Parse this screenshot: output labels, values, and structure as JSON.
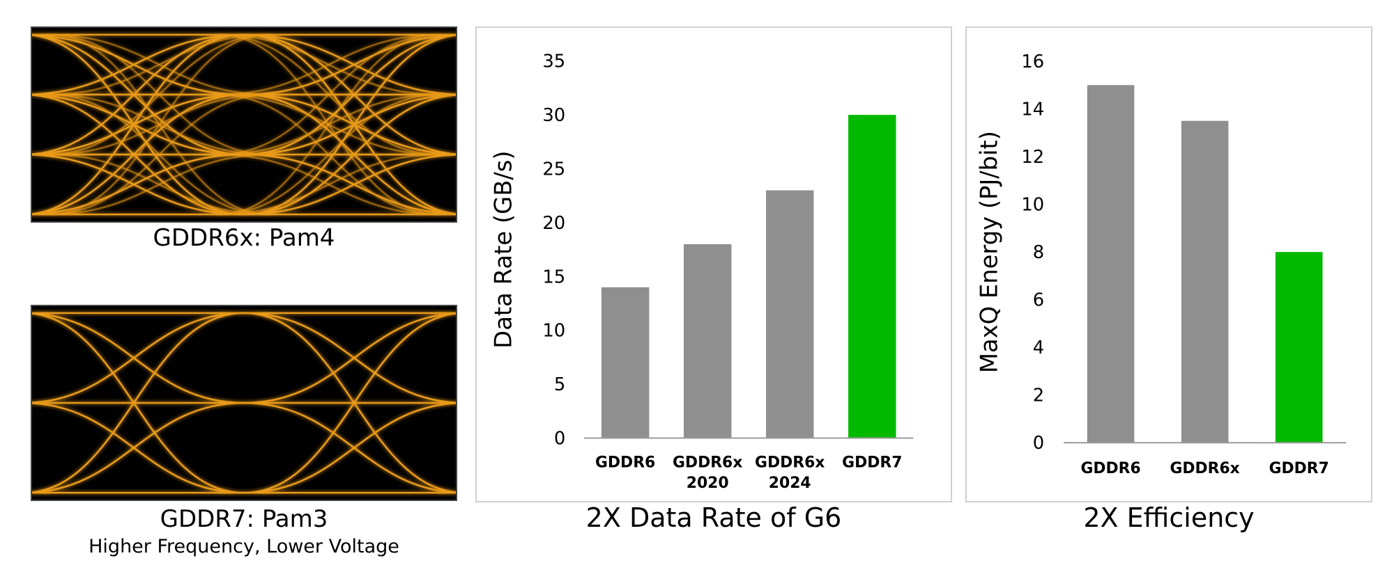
{
  "eye_diagrams": [
    {
      "caption": "GDDR6x: Pam4",
      "levels": 4,
      "color": "#f5a31a"
    },
    {
      "caption": "GDDR7: Pam3",
      "subcaption": "Higher Frequency, Lower Voltage",
      "levels": 3,
      "color": "#f5a31a"
    }
  ],
  "chart_data": [
    {
      "type": "bar",
      "caption": "2X Data Rate of G6",
      "ylabel": "Data Rate (GB/s)",
      "categories": [
        "GDDR6",
        "GDDR6x\n2020",
        "GDDR6x\n2024",
        "GDDR7"
      ],
      "values": [
        14,
        18,
        23,
        30
      ],
      "colors": [
        "#8f8f8f",
        "#8f8f8f",
        "#8f8f8f",
        "#00b900"
      ],
      "ylim": [
        0,
        35
      ],
      "yticks": [
        0,
        5,
        10,
        15,
        20,
        25,
        30,
        35
      ],
      "grid": false
    },
    {
      "type": "bar",
      "caption": "2X Efficiency",
      "ylabel": "MaxQ Energy (PJ/bit)",
      "categories": [
        "GDDR6",
        "GDDR6x",
        "GDDR7"
      ],
      "values": [
        15,
        13.5,
        8
      ],
      "colors": [
        "#8f8f8f",
        "#8f8f8f",
        "#00b900"
      ],
      "ylim": [
        0,
        16
      ],
      "yticks": [
        0,
        2,
        4,
        6,
        8,
        10,
        12,
        14,
        16
      ],
      "grid": false
    }
  ]
}
